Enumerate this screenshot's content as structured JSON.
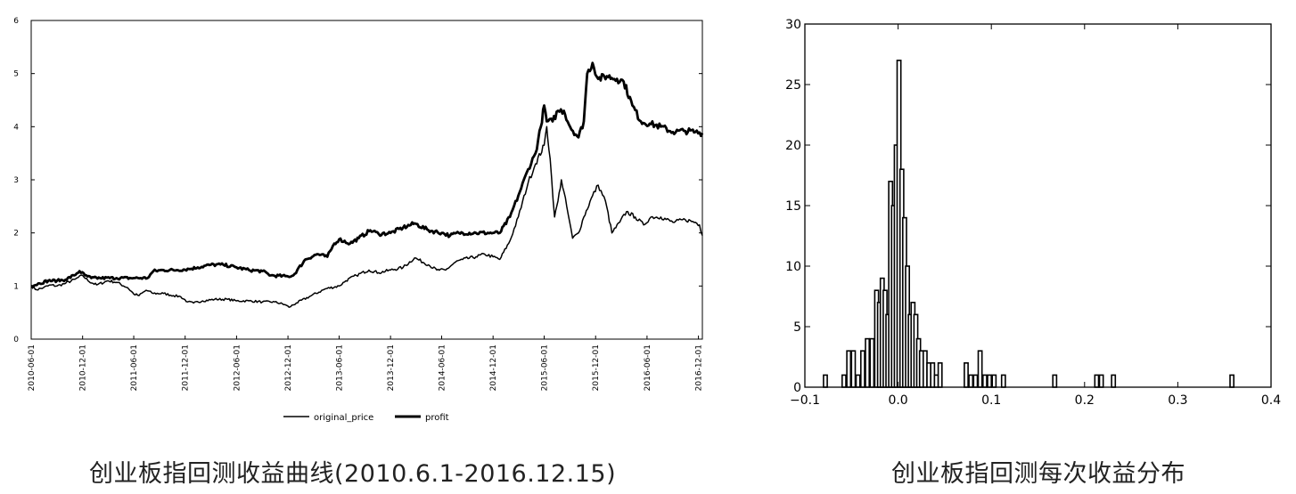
{
  "captions": {
    "left": "创业板指回测收益曲线(2010.6.1-2016.12.15)",
    "right": "创业板指回测每次收益分布"
  },
  "chart_data": [
    {
      "type": "line",
      "title": "",
      "xlabel": "",
      "ylabel": "",
      "ylim": [
        0,
        6
      ],
      "yticks": [
        "0",
        "1",
        "2",
        "3",
        "4",
        "5",
        "6"
      ],
      "xticks": [
        "2010-06-01",
        "2010-12-01",
        "2011-06-01",
        "2011-12-01",
        "2012-06-01",
        "2012-12-01",
        "2013-06-01",
        "2013-12-01",
        "2014-06-01",
        "2014-12-01",
        "2015-06-01",
        "2015-12-01",
        "2016-06-01",
        "2016-12-01"
      ],
      "xrange": [
        "2010-06-01",
        "2016-12-15"
      ],
      "legend_position": "bottom-center",
      "grid": false,
      "series": [
        {
          "name": "original_price",
          "points": [
            [
              "2010-06-01",
              1.0
            ],
            [
              "2010-06-20",
              0.93
            ],
            [
              "2010-07-15",
              0.97
            ],
            [
              "2010-08-10",
              1.02
            ],
            [
              "2010-09-01",
              1.0
            ],
            [
              "2010-10-01",
              1.05
            ],
            [
              "2010-11-05",
              1.13
            ],
            [
              "2010-12-01",
              1.2
            ],
            [
              "2010-12-20",
              1.1
            ],
            [
              "2011-01-20",
              1.02
            ],
            [
              "2011-03-01",
              1.1
            ],
            [
              "2011-04-01",
              1.07
            ],
            [
              "2011-05-10",
              0.97
            ],
            [
              "2011-06-01",
              0.85
            ],
            [
              "2011-06-20",
              0.82
            ],
            [
              "2011-07-15",
              0.92
            ],
            [
              "2011-08-10",
              0.86
            ],
            [
              "2011-09-15",
              0.86
            ],
            [
              "2011-10-20",
              0.82
            ],
            [
              "2011-11-15",
              0.8
            ],
            [
              "2011-12-10",
              0.7
            ],
            [
              "2011-12-31",
              0.68
            ],
            [
              "2012-02-01",
              0.72
            ],
            [
              "2012-03-15",
              0.75
            ],
            [
              "2012-05-01",
              0.75
            ],
            [
              "2012-06-01",
              0.72
            ],
            [
              "2012-07-15",
              0.72
            ],
            [
              "2012-09-01",
              0.7
            ],
            [
              "2012-10-15",
              0.7
            ],
            [
              "2012-11-20",
              0.65
            ],
            [
              "2012-12-05",
              0.6
            ],
            [
              "2012-12-31",
              0.68
            ],
            [
              "2013-02-15",
              0.8
            ],
            [
              "2013-04-15",
              0.95
            ],
            [
              "2013-06-01",
              1.0
            ],
            [
              "2013-06-25",
              1.1
            ],
            [
              "2013-08-01",
              1.2
            ],
            [
              "2013-09-15",
              1.3
            ],
            [
              "2013-10-20",
              1.25
            ],
            [
              "2013-12-01",
              1.3
            ],
            [
              "2014-01-15",
              1.35
            ],
            [
              "2014-02-25",
              1.53
            ],
            [
              "2014-04-15",
              1.4
            ],
            [
              "2014-05-15",
              1.3
            ],
            [
              "2014-06-15",
              1.3
            ],
            [
              "2014-07-20",
              1.45
            ],
            [
              "2014-08-15",
              1.5
            ],
            [
              "2014-10-01",
              1.55
            ],
            [
              "2014-11-01",
              1.6
            ],
            [
              "2014-12-01",
              1.55
            ],
            [
              "2014-12-25",
              1.5
            ],
            [
              "2015-01-30",
              1.85
            ],
            [
              "2015-03-01",
              2.3
            ],
            [
              "2015-04-05",
              2.95
            ],
            [
              "2015-05-01",
              3.3
            ],
            [
              "2015-06-01",
              3.65
            ],
            [
              "2015-06-10",
              4.0
            ],
            [
              "2015-06-22",
              3.4
            ],
            [
              "2015-07-08",
              2.3
            ],
            [
              "2015-07-20",
              2.6
            ],
            [
              "2015-08-01",
              3.0
            ],
            [
              "2015-08-20",
              2.5
            ],
            [
              "2015-09-10",
              1.9
            ],
            [
              "2015-10-01",
              2.0
            ],
            [
              "2015-10-20",
              2.3
            ],
            [
              "2015-11-20",
              2.7
            ],
            [
              "2015-12-10",
              2.9
            ],
            [
              "2016-01-05",
              2.6
            ],
            [
              "2016-01-28",
              2.0
            ],
            [
              "2016-02-25",
              2.2
            ],
            [
              "2016-03-20",
              2.4
            ],
            [
              "2016-04-20",
              2.3
            ],
            [
              "2016-05-20",
              2.15
            ],
            [
              "2016-06-15",
              2.3
            ],
            [
              "2016-07-20",
              2.3
            ],
            [
              "2016-09-01",
              2.2
            ],
            [
              "2016-10-15",
              2.25
            ],
            [
              "2016-11-20",
              2.2
            ],
            [
              "2016-12-05",
              2.15
            ],
            [
              "2016-12-15",
              1.95
            ]
          ]
        },
        {
          "name": "profit",
          "points": [
            [
              "2010-06-01",
              1.0
            ],
            [
              "2010-07-01",
              1.05
            ],
            [
              "2010-08-01",
              1.1
            ],
            [
              "2010-09-01",
              1.1
            ],
            [
              "2010-10-01",
              1.12
            ],
            [
              "2010-11-01",
              1.2
            ],
            [
              "2010-11-20",
              1.28
            ],
            [
              "2010-12-10",
              1.2
            ],
            [
              "2011-01-01",
              1.15
            ],
            [
              "2011-02-01",
              1.15
            ],
            [
              "2011-04-01",
              1.15
            ],
            [
              "2011-06-01",
              1.15
            ],
            [
              "2011-07-20",
              1.15
            ],
            [
              "2011-08-10",
              1.28
            ],
            [
              "2011-09-15",
              1.3
            ],
            [
              "2011-11-01",
              1.3
            ],
            [
              "2011-12-15",
              1.32
            ],
            [
              "2012-01-15",
              1.35
            ],
            [
              "2012-03-01",
              1.4
            ],
            [
              "2012-04-15",
              1.4
            ],
            [
              "2012-06-01",
              1.35
            ],
            [
              "2012-07-15",
              1.3
            ],
            [
              "2012-09-01",
              1.28
            ],
            [
              "2012-10-01",
              1.2
            ],
            [
              "2012-12-01",
              1.18
            ],
            [
              "2012-12-20",
              1.2
            ],
            [
              "2013-02-01",
              1.5
            ],
            [
              "2013-03-15",
              1.6
            ],
            [
              "2013-04-20",
              1.55
            ],
            [
              "2013-05-15",
              1.8
            ],
            [
              "2013-06-01",
              1.88
            ],
            [
              "2013-07-10",
              1.8
            ],
            [
              "2013-08-10",
              1.9
            ],
            [
              "2013-09-20",
              2.05
            ],
            [
              "2013-10-20",
              1.98
            ],
            [
              "2013-12-01",
              2.0
            ],
            [
              "2014-01-15",
              2.1
            ],
            [
              "2014-02-25",
              2.18
            ],
            [
              "2014-04-15",
              2.05
            ],
            [
              "2014-06-01",
              2.0
            ],
            [
              "2014-07-01",
              1.95
            ],
            [
              "2014-08-01",
              2.0
            ],
            [
              "2014-10-01",
              2.0
            ],
            [
              "2014-12-01",
              2.0
            ],
            [
              "2014-12-25",
              2.0
            ],
            [
              "2015-01-30",
              2.3
            ],
            [
              "2015-03-01",
              2.7
            ],
            [
              "2015-04-05",
              3.2
            ],
            [
              "2015-05-01",
              3.5
            ],
            [
              "2015-05-20",
              4.0
            ],
            [
              "2015-06-01",
              4.4
            ],
            [
              "2015-06-10",
              4.1
            ],
            [
              "2015-07-01",
              4.1
            ],
            [
              "2015-07-20",
              4.3
            ],
            [
              "2015-08-10",
              4.3
            ],
            [
              "2015-09-01",
              4.0
            ],
            [
              "2015-10-01",
              3.8
            ],
            [
              "2015-10-20",
              4.1
            ],
            [
              "2015-11-01",
              5.0
            ],
            [
              "2015-11-20",
              5.2
            ],
            [
              "2015-12-10",
              4.9
            ],
            [
              "2016-01-10",
              4.95
            ],
            [
              "2016-02-15",
              4.9
            ],
            [
              "2016-03-10",
              4.85
            ],
            [
              "2016-04-10",
              4.4
            ],
            [
              "2016-05-10",
              4.1
            ],
            [
              "2016-06-15",
              4.05
            ],
            [
              "2016-07-20",
              4.0
            ],
            [
              "2016-09-01",
              3.9
            ],
            [
              "2016-10-15",
              3.92
            ],
            [
              "2016-11-20",
              3.9
            ],
            [
              "2016-12-15",
              3.88
            ]
          ]
        }
      ]
    },
    {
      "type": "bar",
      "title": "",
      "xlabel": "",
      "ylabel": "",
      "xlim": [
        -0.1,
        0.4
      ],
      "ylim": [
        0,
        30
      ],
      "xticks": [
        "−0.1",
        "0.0",
        "0.1",
        "0.2",
        "0.3",
        "0.4"
      ],
      "yticks": [
        "0",
        "5",
        "10",
        "15",
        "20",
        "25",
        "30"
      ],
      "grid": false,
      "bins": [
        [
          -0.078,
          1
        ],
        [
          -0.058,
          1
        ],
        [
          -0.053,
          3
        ],
        [
          -0.048,
          3
        ],
        [
          -0.043,
          1
        ],
        [
          -0.038,
          3
        ],
        [
          -0.033,
          4
        ],
        [
          -0.028,
          4
        ],
        [
          -0.023,
          8
        ],
        [
          -0.02,
          7
        ],
        [
          -0.017,
          9
        ],
        [
          -0.014,
          8
        ],
        [
          -0.011,
          6
        ],
        [
          -0.008,
          17
        ],
        [
          -0.005,
          15
        ],
        [
          -0.002,
          20
        ],
        [
          0.001,
          27
        ],
        [
          0.004,
          18
        ],
        [
          0.007,
          14
        ],
        [
          0.01,
          10
        ],
        [
          0.013,
          6
        ],
        [
          0.016,
          7
        ],
        [
          0.019,
          6
        ],
        [
          0.022,
          4
        ],
        [
          0.025,
          3
        ],
        [
          0.029,
          3
        ],
        [
          0.033,
          2
        ],
        [
          0.037,
          2
        ],
        [
          0.041,
          1
        ],
        [
          0.045,
          2
        ],
        [
          0.073,
          2
        ],
        [
          0.078,
          1
        ],
        [
          0.083,
          1
        ],
        [
          0.088,
          3
        ],
        [
          0.093,
          1
        ],
        [
          0.098,
          1
        ],
        [
          0.103,
          1
        ],
        [
          0.113,
          1
        ],
        [
          0.168,
          1
        ],
        [
          0.213,
          1
        ],
        [
          0.218,
          1
        ],
        [
          0.231,
          1
        ],
        [
          0.358,
          1
        ]
      ]
    }
  ]
}
